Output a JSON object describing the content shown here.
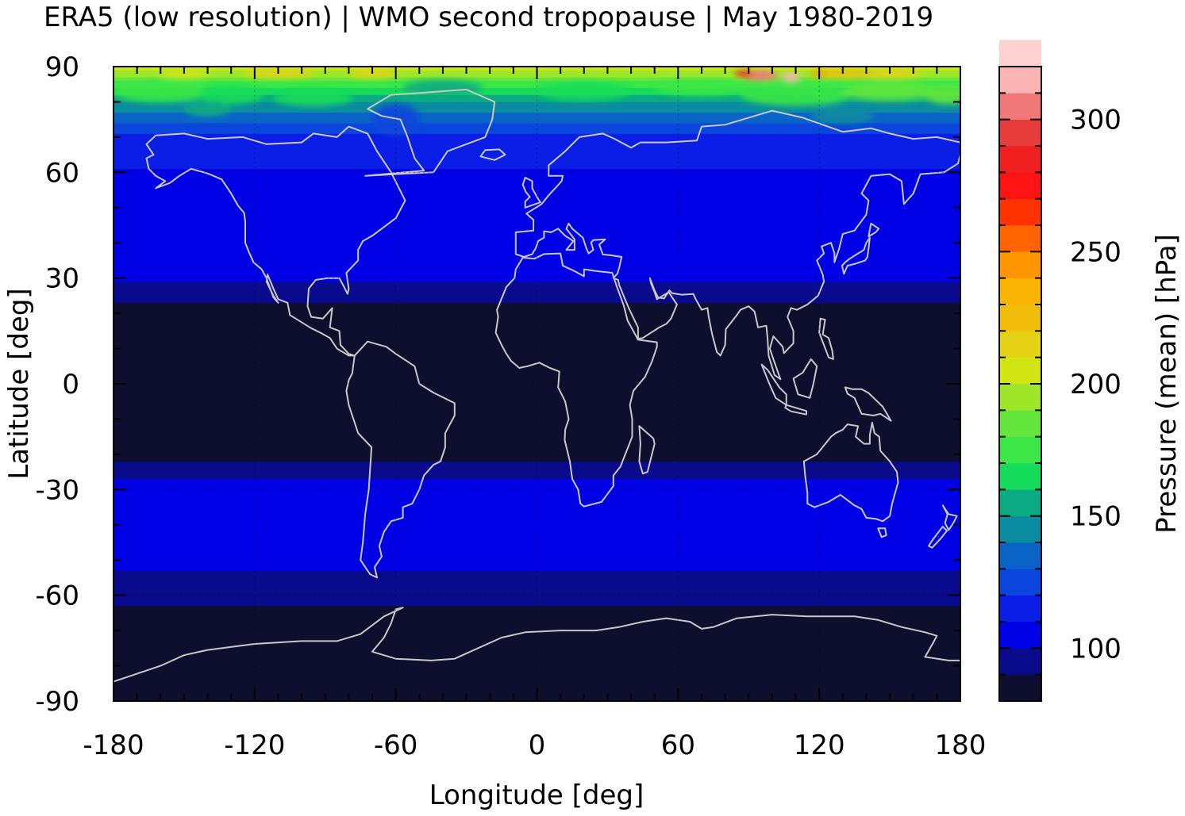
{
  "chart_data": {
    "type": "heatmap",
    "title": "ERA5 (low resolution) | WMO second tropopause | May 1980-2019",
    "xlabel": "Longitude [deg]",
    "ylabel": "Latitude [deg]",
    "xlim": [
      -180,
      180
    ],
    "ylim": [
      -90,
      90
    ],
    "x_ticks": [
      -180,
      -120,
      -60,
      0,
      60,
      120,
      180
    ],
    "y_ticks": [
      -90,
      -60,
      -30,
      0,
      30,
      60,
      90
    ],
    "x_tick_labels": [
      "-180",
      "-120",
      "-60",
      "0",
      "60",
      "120",
      "180"
    ],
    "y_tick_labels": [
      "-90",
      "-60",
      "-30",
      "0",
      "30",
      "60",
      "90"
    ],
    "grid": true,
    "colorbar": {
      "label": "Pressure (mean) [hPa]",
      "range": [
        80,
        320
      ],
      "step": 10,
      "ticks": [
        100,
        150,
        200,
        250,
        300
      ],
      "tick_labels": [
        "100",
        "150",
        "200",
        "250",
        "300"
      ],
      "colors": [
        "#0e0e2e",
        "#0a0a8c",
        "#0000e6",
        "#0a1ee6",
        "#0a46dc",
        "#0a64c8",
        "#0a8ca0",
        "#0aaa82",
        "#14dc5a",
        "#3ce646",
        "#64e63c",
        "#a0e628",
        "#d2e614",
        "#e6d214",
        "#f0be0a",
        "#fab400",
        "#ff9600",
        "#ff6400",
        "#ff3200",
        "#ff1414",
        "#f02020",
        "#e63c3c",
        "#f07878",
        "#fab4b4",
        "#ffd2d2"
      ]
    },
    "zonal_mean_pressure_hPa": [
      {
        "lat": -90,
        "value": 85
      },
      {
        "lat": -80,
        "value": 85
      },
      {
        "lat": -70,
        "value": 85
      },
      {
        "lat": -65,
        "value": 88
      },
      {
        "lat": -60,
        "value": 93
      },
      {
        "lat": -50,
        "value": 103
      },
      {
        "lat": -40,
        "value": 107
      },
      {
        "lat": -30,
        "value": 104
      },
      {
        "lat": -25,
        "value": 96
      },
      {
        "lat": -20,
        "value": 86
      },
      {
        "lat": 0,
        "value": 85
      },
      {
        "lat": 20,
        "value": 85
      },
      {
        "lat": 25,
        "value": 94
      },
      {
        "lat": 30,
        "value": 101
      },
      {
        "lat": 40,
        "value": 104
      },
      {
        "lat": 50,
        "value": 107
      },
      {
        "lat": 60,
        "value": 109
      },
      {
        "lat": 70,
        "value": 118
      },
      {
        "lat": 80,
        "value": 150
      },
      {
        "lat": 85,
        "value": 175
      },
      {
        "lat": 89,
        "value": 200
      }
    ]
  }
}
